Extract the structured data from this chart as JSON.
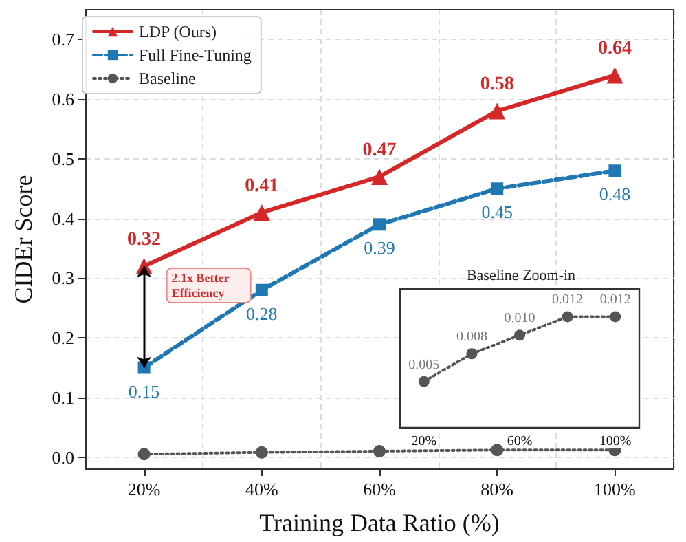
{
  "chart_data": [
    {
      "type": "line",
      "xlabel": "Training Data Ratio (%)",
      "ylabel": "CIDEr Score",
      "categories": [
        "20%",
        "40%",
        "60%",
        "80%",
        "100%"
      ],
      "series": [
        {
          "name": "LDP (Ours)",
          "color": "#d62728",
          "marker": "triangle",
          "line_style": "solid",
          "values": [
            0.32,
            0.41,
            0.47,
            0.58,
            0.64
          ],
          "value_labels": [
            "0.32",
            "0.41",
            "0.47",
            "0.58",
            "0.64"
          ]
        },
        {
          "name": "Full Fine-Tuning",
          "color": "#1f77b4",
          "marker": "square",
          "line_style": "dashed",
          "values": [
            0.15,
            0.28,
            0.39,
            0.45,
            0.48
          ],
          "value_labels": [
            "0.15",
            "0.28",
            "0.39",
            "0.45",
            "0.48"
          ]
        },
        {
          "name": "Baseline",
          "color": "#555555",
          "marker": "circle",
          "line_style": "dotted",
          "values": [
            0.005,
            0.008,
            0.01,
            0.012,
            0.012
          ]
        }
      ],
      "ylim": [
        -0.02,
        0.75
      ],
      "yticks": [
        {
          "value": 0,
          "label": "0.0"
        },
        0.1,
        0.2,
        0.3,
        0.4,
        0.5,
        0.6,
        0.7
      ],
      "grid": true,
      "legend": "top left",
      "annotations": [
        "2.1x Better Efficiency"
      ]
    },
    {
      "type": "line",
      "title": "Baseline Zoom-in",
      "categories": [
        "20%",
        null,
        "60%",
        null,
        "100%"
      ],
      "series": [
        {
          "color": "#555555",
          "values": [
            0.005,
            0.008,
            0.01,
            0.012,
            0.012
          ],
          "value_labels": [
            "0.005",
            "0.008",
            "0.010",
            "0.012",
            "0.012"
          ]
        }
      ],
      "ylim": [
        0,
        0.015
      ],
      "tick_labels": "x",
      "marker": "circle",
      "line_style": "dotted"
    }
  ]
}
